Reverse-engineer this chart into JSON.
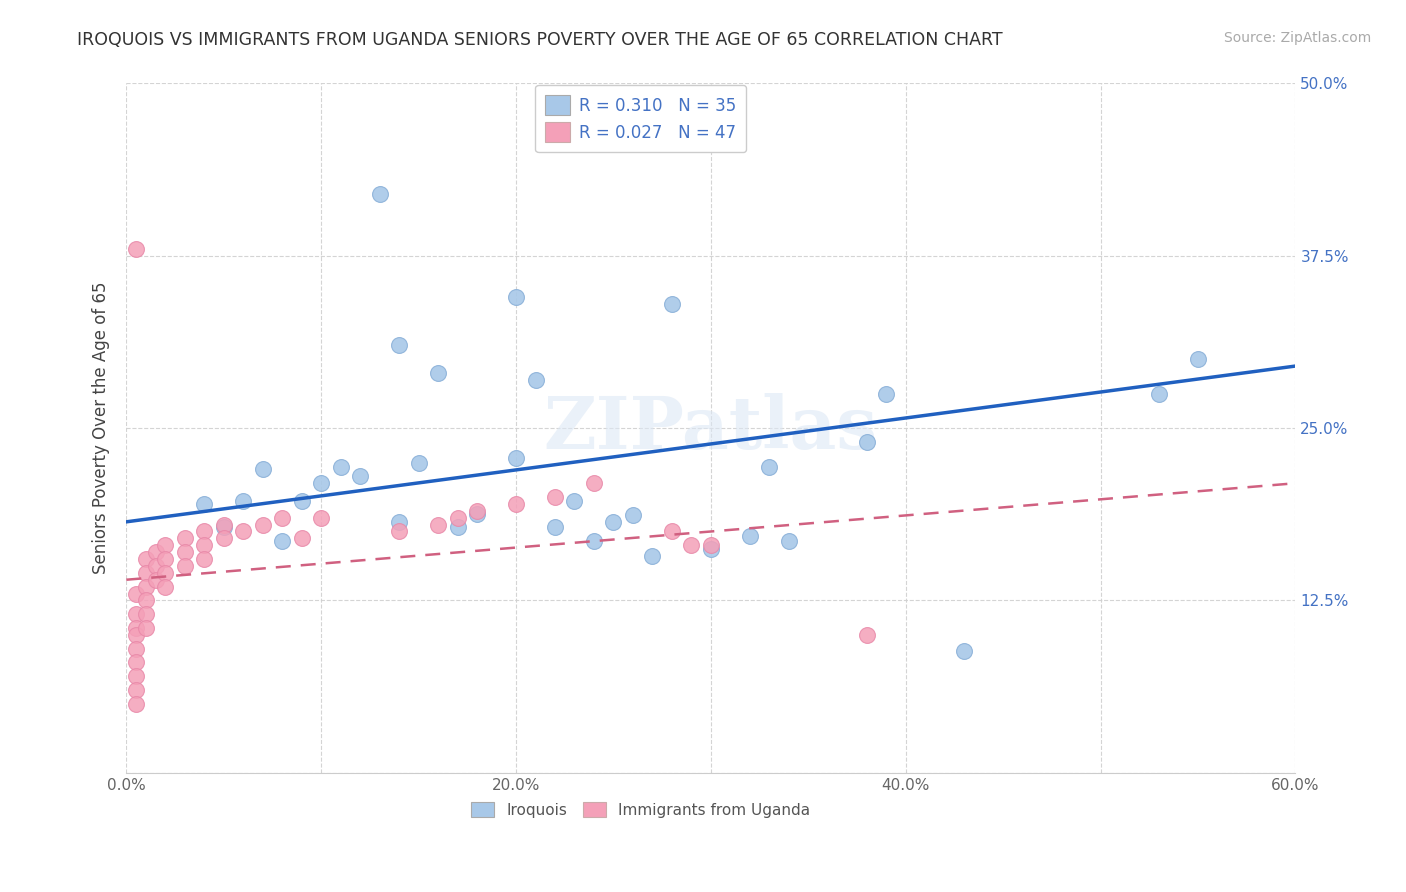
{
  "title": "IROQUOIS VS IMMIGRANTS FROM UGANDA SENIORS POVERTY OVER THE AGE OF 65 CORRELATION CHART",
  "source": "Source: ZipAtlas.com",
  "ylabel": "Seniors Poverty Over the Age of 65",
  "legend_label_1": "Iroquois",
  "legend_label_2": "Immigrants from Uganda",
  "r1": 0.31,
  "n1": 35,
  "r2": 0.027,
  "n2": 47,
  "color1": "#a8c8e8",
  "color2": "#f4a0b8",
  "line_color1": "#2060c0",
  "line_color2": "#d06080",
  "xlim": [
    0.0,
    0.6
  ],
  "ylim": [
    0.0,
    0.5
  ],
  "background_color": "#ffffff",
  "grid_color": "#d0d0d0",
  "iroquois_x": [
    0.04,
    0.13,
    0.2,
    0.16,
    0.14,
    0.1,
    0.12,
    0.15,
    0.28,
    0.38,
    0.06,
    0.07,
    0.21,
    0.22,
    0.09,
    0.39,
    0.53,
    0.55,
    0.05,
    0.17,
    0.14,
    0.23,
    0.25,
    0.26,
    0.11,
    0.2,
    0.24,
    0.34,
    0.43,
    0.18,
    0.33,
    0.27,
    0.08,
    0.32,
    0.3
  ],
  "iroquois_y": [
    0.195,
    0.42,
    0.345,
    0.29,
    0.31,
    0.21,
    0.215,
    0.225,
    0.34,
    0.24,
    0.197,
    0.22,
    0.285,
    0.178,
    0.197,
    0.275,
    0.275,
    0.3,
    0.178,
    0.178,
    0.182,
    0.197,
    0.182,
    0.187,
    0.222,
    0.228,
    0.168,
    0.168,
    0.088,
    0.188,
    0.222,
    0.157,
    0.168,
    0.172,
    0.162
  ],
  "uganda_x": [
    0.005,
    0.005,
    0.005,
    0.005,
    0.005,
    0.005,
    0.005,
    0.005,
    0.005,
    0.005,
    0.01,
    0.01,
    0.01,
    0.01,
    0.01,
    0.01,
    0.015,
    0.015,
    0.015,
    0.02,
    0.02,
    0.02,
    0.02,
    0.03,
    0.03,
    0.03,
    0.04,
    0.04,
    0.04,
    0.05,
    0.05,
    0.06,
    0.07,
    0.08,
    0.09,
    0.1,
    0.14,
    0.16,
    0.17,
    0.18,
    0.2,
    0.22,
    0.24,
    0.28,
    0.29,
    0.3,
    0.38
  ],
  "uganda_y": [
    0.38,
    0.13,
    0.115,
    0.105,
    0.1,
    0.09,
    0.08,
    0.07,
    0.06,
    0.05,
    0.155,
    0.145,
    0.135,
    0.125,
    0.115,
    0.105,
    0.16,
    0.15,
    0.14,
    0.165,
    0.155,
    0.145,
    0.135,
    0.17,
    0.16,
    0.15,
    0.175,
    0.165,
    0.155,
    0.18,
    0.17,
    0.175,
    0.18,
    0.185,
    0.17,
    0.185,
    0.175,
    0.18,
    0.185,
    0.19,
    0.195,
    0.2,
    0.21,
    0.175,
    0.165,
    0.165,
    0.1
  ]
}
